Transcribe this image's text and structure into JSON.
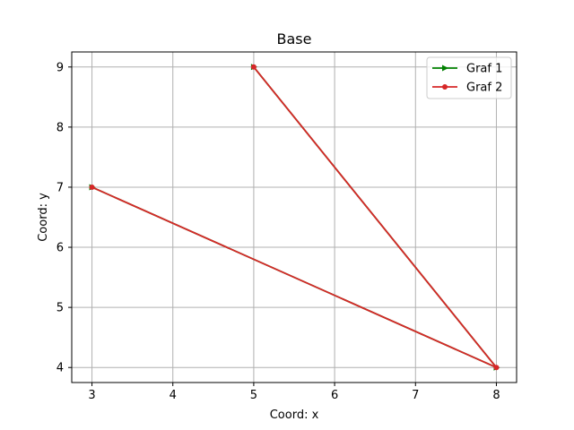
{
  "chart_data": {
    "type": "line",
    "title": "Base",
    "xlabel": "Coord: x",
    "ylabel": "Coord: y",
    "xlim": [
      2.75,
      8.25
    ],
    "ylim": [
      3.75,
      9.25
    ],
    "xticks": [
      3,
      4,
      5,
      6,
      7,
      8
    ],
    "yticks": [
      4,
      5,
      6,
      7,
      8,
      9
    ],
    "grid": true,
    "legend_position": "top-right",
    "series": [
      {
        "name": "Graf 1",
        "color": "#008000",
        "marker": "triangle-right",
        "x": [
          3,
          8,
          5
        ],
        "y": [
          7,
          4,
          9
        ]
      },
      {
        "name": "Graf 2",
        "color": "#d62728",
        "marker": "circle",
        "x": [
          3,
          8,
          5
        ],
        "y": [
          7,
          4,
          9
        ]
      }
    ]
  }
}
